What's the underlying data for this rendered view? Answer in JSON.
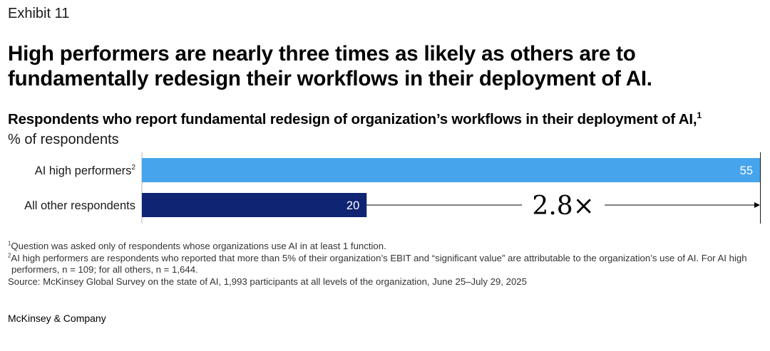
{
  "exhibit_label": "Exhibit 11",
  "headline": "High performers are nearly three times as likely as others are to fundamentally redesign their workflows in their deployment of AI.",
  "chart_data": {
    "type": "bar",
    "orientation": "horizontal",
    "title": "Respondents who report fundamental redesign of organization’s workflows in their deployment of AI,",
    "title_footnote": "1",
    "unit_label": "% of respondents",
    "categories": [
      "AI high performers",
      "All other respondents"
    ],
    "category_footnotes": [
      "2",
      ""
    ],
    "values": [
      55,
      20
    ],
    "value_labels": [
      "55",
      "20"
    ],
    "colors": [
      "#45a4ec",
      "#0f2573"
    ],
    "xlim": [
      0,
      55
    ],
    "comparison_label": "2.8×",
    "grid": false
  },
  "footnotes": [
    {
      "marker": "1",
      "text": "Question was asked only of respondents whose organizations use AI in at least 1 function."
    },
    {
      "marker": "2",
      "text": "AI high performers are respondents who reported that more than 5% of their organization’s EBIT and “significant value” are attributable to the organization’s use of AI. For AI high performers, n = 109; for all others, n = 1,644."
    }
  ],
  "source": "Source: McKinsey Global Survey on the state of AI, 1,993 participants at all levels of the organization, June 25–July 29, 2025",
  "brand": "McKinsey & Company"
}
